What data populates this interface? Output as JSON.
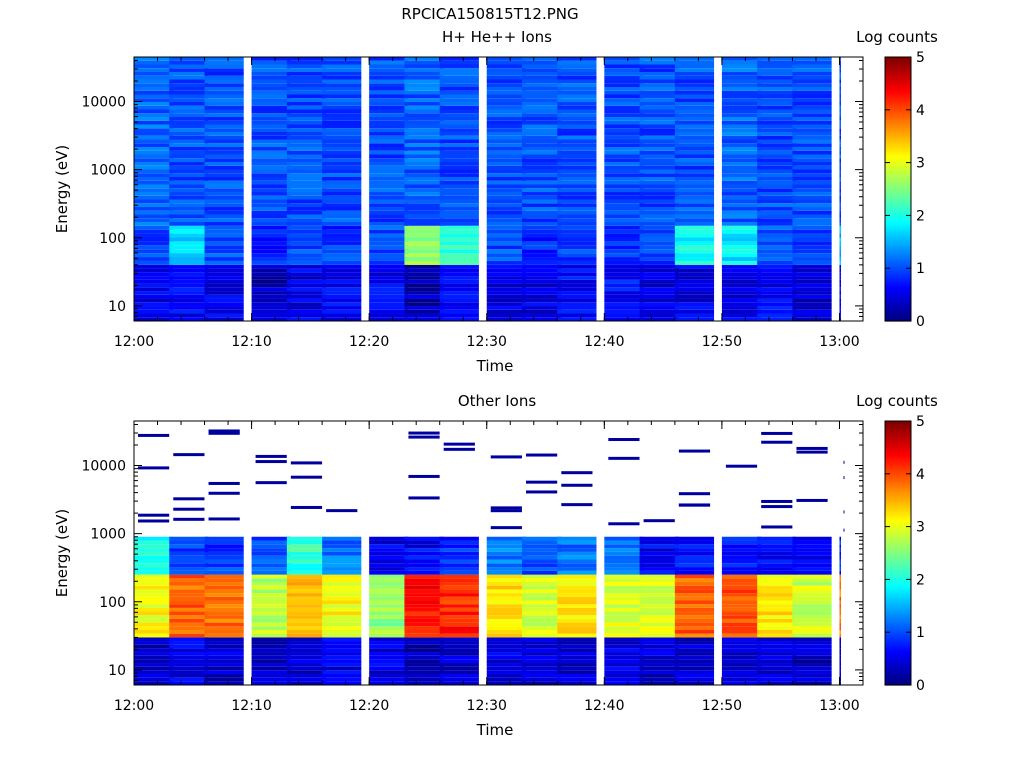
{
  "page_title": "RPCICA150815T12.PNG",
  "chart_data": [
    {
      "type": "heatmap",
      "title": "H+ He++ Ions",
      "xlabel": "Time",
      "ylabel": "Energy (eV)",
      "x_ticks": [
        "12:00",
        "12:10",
        "12:20",
        "12:30",
        "12:40",
        "12:50",
        "13:00"
      ],
      "x_range": [
        "12:00",
        "13:02"
      ],
      "y_scale": "log",
      "y_ticks": [
        10,
        100,
        1000,
        10000
      ],
      "y_range": [
        6,
        45000
      ],
      "colorbar": {
        "label": "Log counts",
        "range": [
          0,
          5
        ],
        "ticks": [
          0,
          1,
          2,
          3,
          4,
          5
        ]
      },
      "time_bins": [
        "12:00",
        "12:03",
        "12:06",
        "12:10",
        "12:13",
        "12:16",
        "12:20",
        "12:23",
        "12:26",
        "12:30",
        "12:33",
        "12:36",
        "12:40",
        "12:43",
        "12:46",
        "12:50",
        "12:53",
        "12:56",
        "13:00"
      ],
      "energy_bands": [
        {
          "energy_range": [
            6,
            40
          ],
          "log_counts": [
            0.5,
            0.6,
            0.5,
            0.3,
            0.5,
            0.6,
            0.6,
            0.3,
            0.7,
            0.5,
            0.5,
            0.6,
            0.7,
            0.5,
            0.5,
            0.5,
            0.6,
            0.4,
            0.6
          ]
        },
        {
          "energy_range": [
            40,
            150
          ],
          "log_counts": [
            1.0,
            1.7,
            1.0,
            0.8,
            1.0,
            0.9,
            1.0,
            2.6,
            2.1,
            1.0,
            0.8,
            0.9,
            0.9,
            0.9,
            1.9,
            1.8,
            1.0,
            0.9,
            1.5
          ]
        },
        {
          "energy_range": [
            150,
            45000
          ],
          "log_counts": [
            1.1,
            1.0,
            1.0,
            1.0,
            1.0,
            1.0,
            1.0,
            1.1,
            1.0,
            1.0,
            1.0,
            1.0,
            1.0,
            1.0,
            1.0,
            1.1,
            1.0,
            1.0,
            1.0
          ]
        }
      ]
    },
    {
      "type": "heatmap",
      "title": "Other Ions",
      "xlabel": "Time",
      "ylabel": "Energy (eV)",
      "x_ticks": [
        "12:00",
        "12:10",
        "12:20",
        "12:30",
        "12:40",
        "12:50",
        "13:00"
      ],
      "x_range": [
        "12:00",
        "13:02"
      ],
      "y_scale": "log",
      "y_ticks": [
        10,
        100,
        1000,
        10000
      ],
      "y_range": [
        6,
        45000
      ],
      "colorbar": {
        "label": "Log counts",
        "range": [
          0,
          5
        ],
        "ticks": [
          0,
          1,
          2,
          3,
          4,
          5
        ]
      },
      "time_bins": [
        "12:00",
        "12:03",
        "12:06",
        "12:10",
        "12:13",
        "12:16",
        "12:20",
        "12:23",
        "12:26",
        "12:30",
        "12:33",
        "12:36",
        "12:40",
        "12:43",
        "12:46",
        "12:50",
        "12:53",
        "12:56",
        "13:00"
      ],
      "energy_bands": [
        {
          "energy_range": [
            6,
            30
          ],
          "log_counts": [
            0.3,
            0.5,
            0.4,
            0.3,
            0.4,
            0.5,
            0.5,
            0.3,
            0.4,
            0.5,
            0.4,
            0.4,
            0.5,
            0.4,
            0.4,
            0.4,
            0.4,
            0.3,
            0.3
          ]
        },
        {
          "energy_range": [
            30,
            250
          ],
          "log_counts": [
            3.1,
            3.9,
            3.8,
            2.8,
            3.5,
            3.1,
            2.6,
            4.3,
            4.2,
            3.3,
            2.9,
            3.2,
            3.0,
            2.9,
            3.9,
            4.0,
            3.2,
            2.9,
            3.8
          ]
        },
        {
          "energy_range": [
            250,
            900
          ],
          "log_counts": [
            2.0,
            0.9,
            0.9,
            1.0,
            2.1,
            1.2,
            0.5,
            0.6,
            0.8,
            1.2,
            1.0,
            1.2,
            1.2,
            0.6,
            0.7,
            0.7,
            0.6,
            0.6,
            0.8
          ]
        }
      ],
      "sparse_high_energy": "scattered single-count (log ~0.1) bins between 1000 and 40000 eV"
    }
  ]
}
